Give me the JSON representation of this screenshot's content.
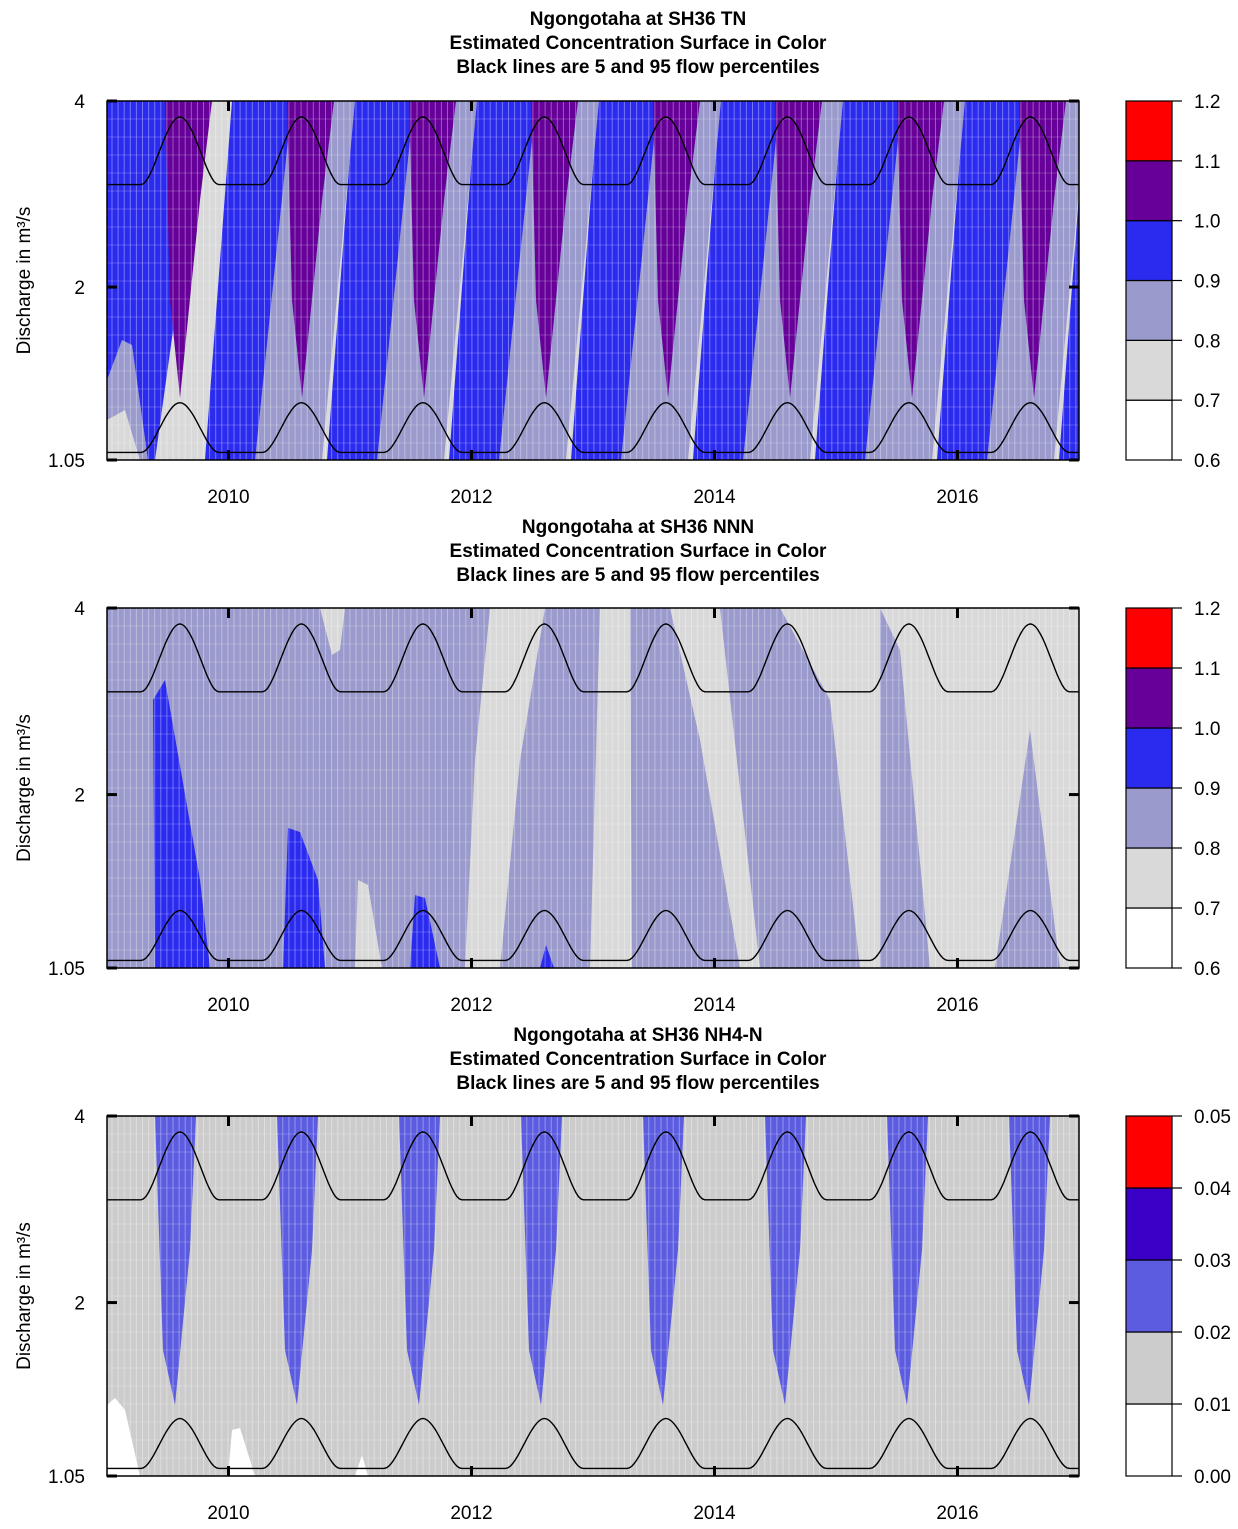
{
  "chart_data": [
    {
      "type": "heatmap",
      "title_lines": [
        "Ngongotaha at SH36    TN",
        "Estimated Concentration Surface in Color",
        "Black lines are 5 and 95 flow percentiles"
      ],
      "xlabel": "",
      "ylabel": "Discharge in m³/s",
      "x_ticks": [
        "2010",
        "2012",
        "2014",
        "2016"
      ],
      "y_ticks": [
        "4",
        "2",
        "1.05"
      ],
      "xlim": [
        2009.0,
        2017.0
      ],
      "ylim": [
        1.05,
        4
      ],
      "y_scale": "log",
      "colorbar": {
        "levels": [
          "0.6",
          "0.7",
          "0.8",
          "0.9",
          "1.0",
          "1.1",
          "1.2"
        ],
        "colors": [
          "#ffffff",
          "#d9d9d9",
          "#9a9acc",
          "#2b2bf0",
          "#660099",
          "#ff0000"
        ]
      },
      "flow_percentile_lines": {
        "p95": {
          "low": 2.93,
          "peak": 3.77
        },
        "p5": {
          "low": 1.08,
          "peak": 1.3
        }
      },
      "grid": true
    },
    {
      "type": "heatmap",
      "title_lines": [
        "Ngongotaha at SH36    NNN",
        "Estimated Concentration Surface in Color",
        "Black lines are 5 and 95 flow percentiles"
      ],
      "xlabel": "",
      "ylabel": "Discharge in m³/s",
      "x_ticks": [
        "2010",
        "2012",
        "2014",
        "2016"
      ],
      "y_ticks": [
        "4",
        "2",
        "1.05"
      ],
      "xlim": [
        2009.0,
        2017.0
      ],
      "ylim": [
        1.05,
        4
      ],
      "y_scale": "log",
      "colorbar": {
        "levels": [
          "0.6",
          "0.7",
          "0.8",
          "0.9",
          "1.0",
          "1.1",
          "1.2"
        ],
        "colors": [
          "#ffffff",
          "#d9d9d9",
          "#9a9acc",
          "#2b2bf0",
          "#660099",
          "#ff0000"
        ]
      },
      "flow_percentile_lines": {
        "p95": {
          "low": 2.93,
          "peak": 3.77
        },
        "p5": {
          "low": 1.08,
          "peak": 1.3
        }
      },
      "grid": true
    },
    {
      "type": "heatmap",
      "title_lines": [
        "Ngongotaha at SH36    NH4-N",
        "Estimated Concentration Surface in Color",
        "Black lines are 5 and 95 flow percentiles"
      ],
      "xlabel": "",
      "ylabel": "Discharge in m³/s",
      "x_ticks": [
        "2010",
        "2012",
        "2014",
        "2016"
      ],
      "y_ticks": [
        "4",
        "2",
        "1.05"
      ],
      "xlim": [
        2009.0,
        2017.0
      ],
      "ylim": [
        1.05,
        4
      ],
      "y_scale": "log",
      "colorbar": {
        "levels": [
          "0.00",
          "0.01",
          "0.02",
          "0.03",
          "0.04",
          "0.05"
        ],
        "colors": [
          "#ffffff",
          "#cccccc",
          "#5c5ce0",
          "#3a00c8",
          "#ff0000"
        ]
      },
      "flow_percentile_lines": {
        "p95": {
          "low": 2.93,
          "peak": 3.77
        },
        "p5": {
          "low": 1.08,
          "peak": 1.3
        }
      },
      "grid": true
    }
  ]
}
